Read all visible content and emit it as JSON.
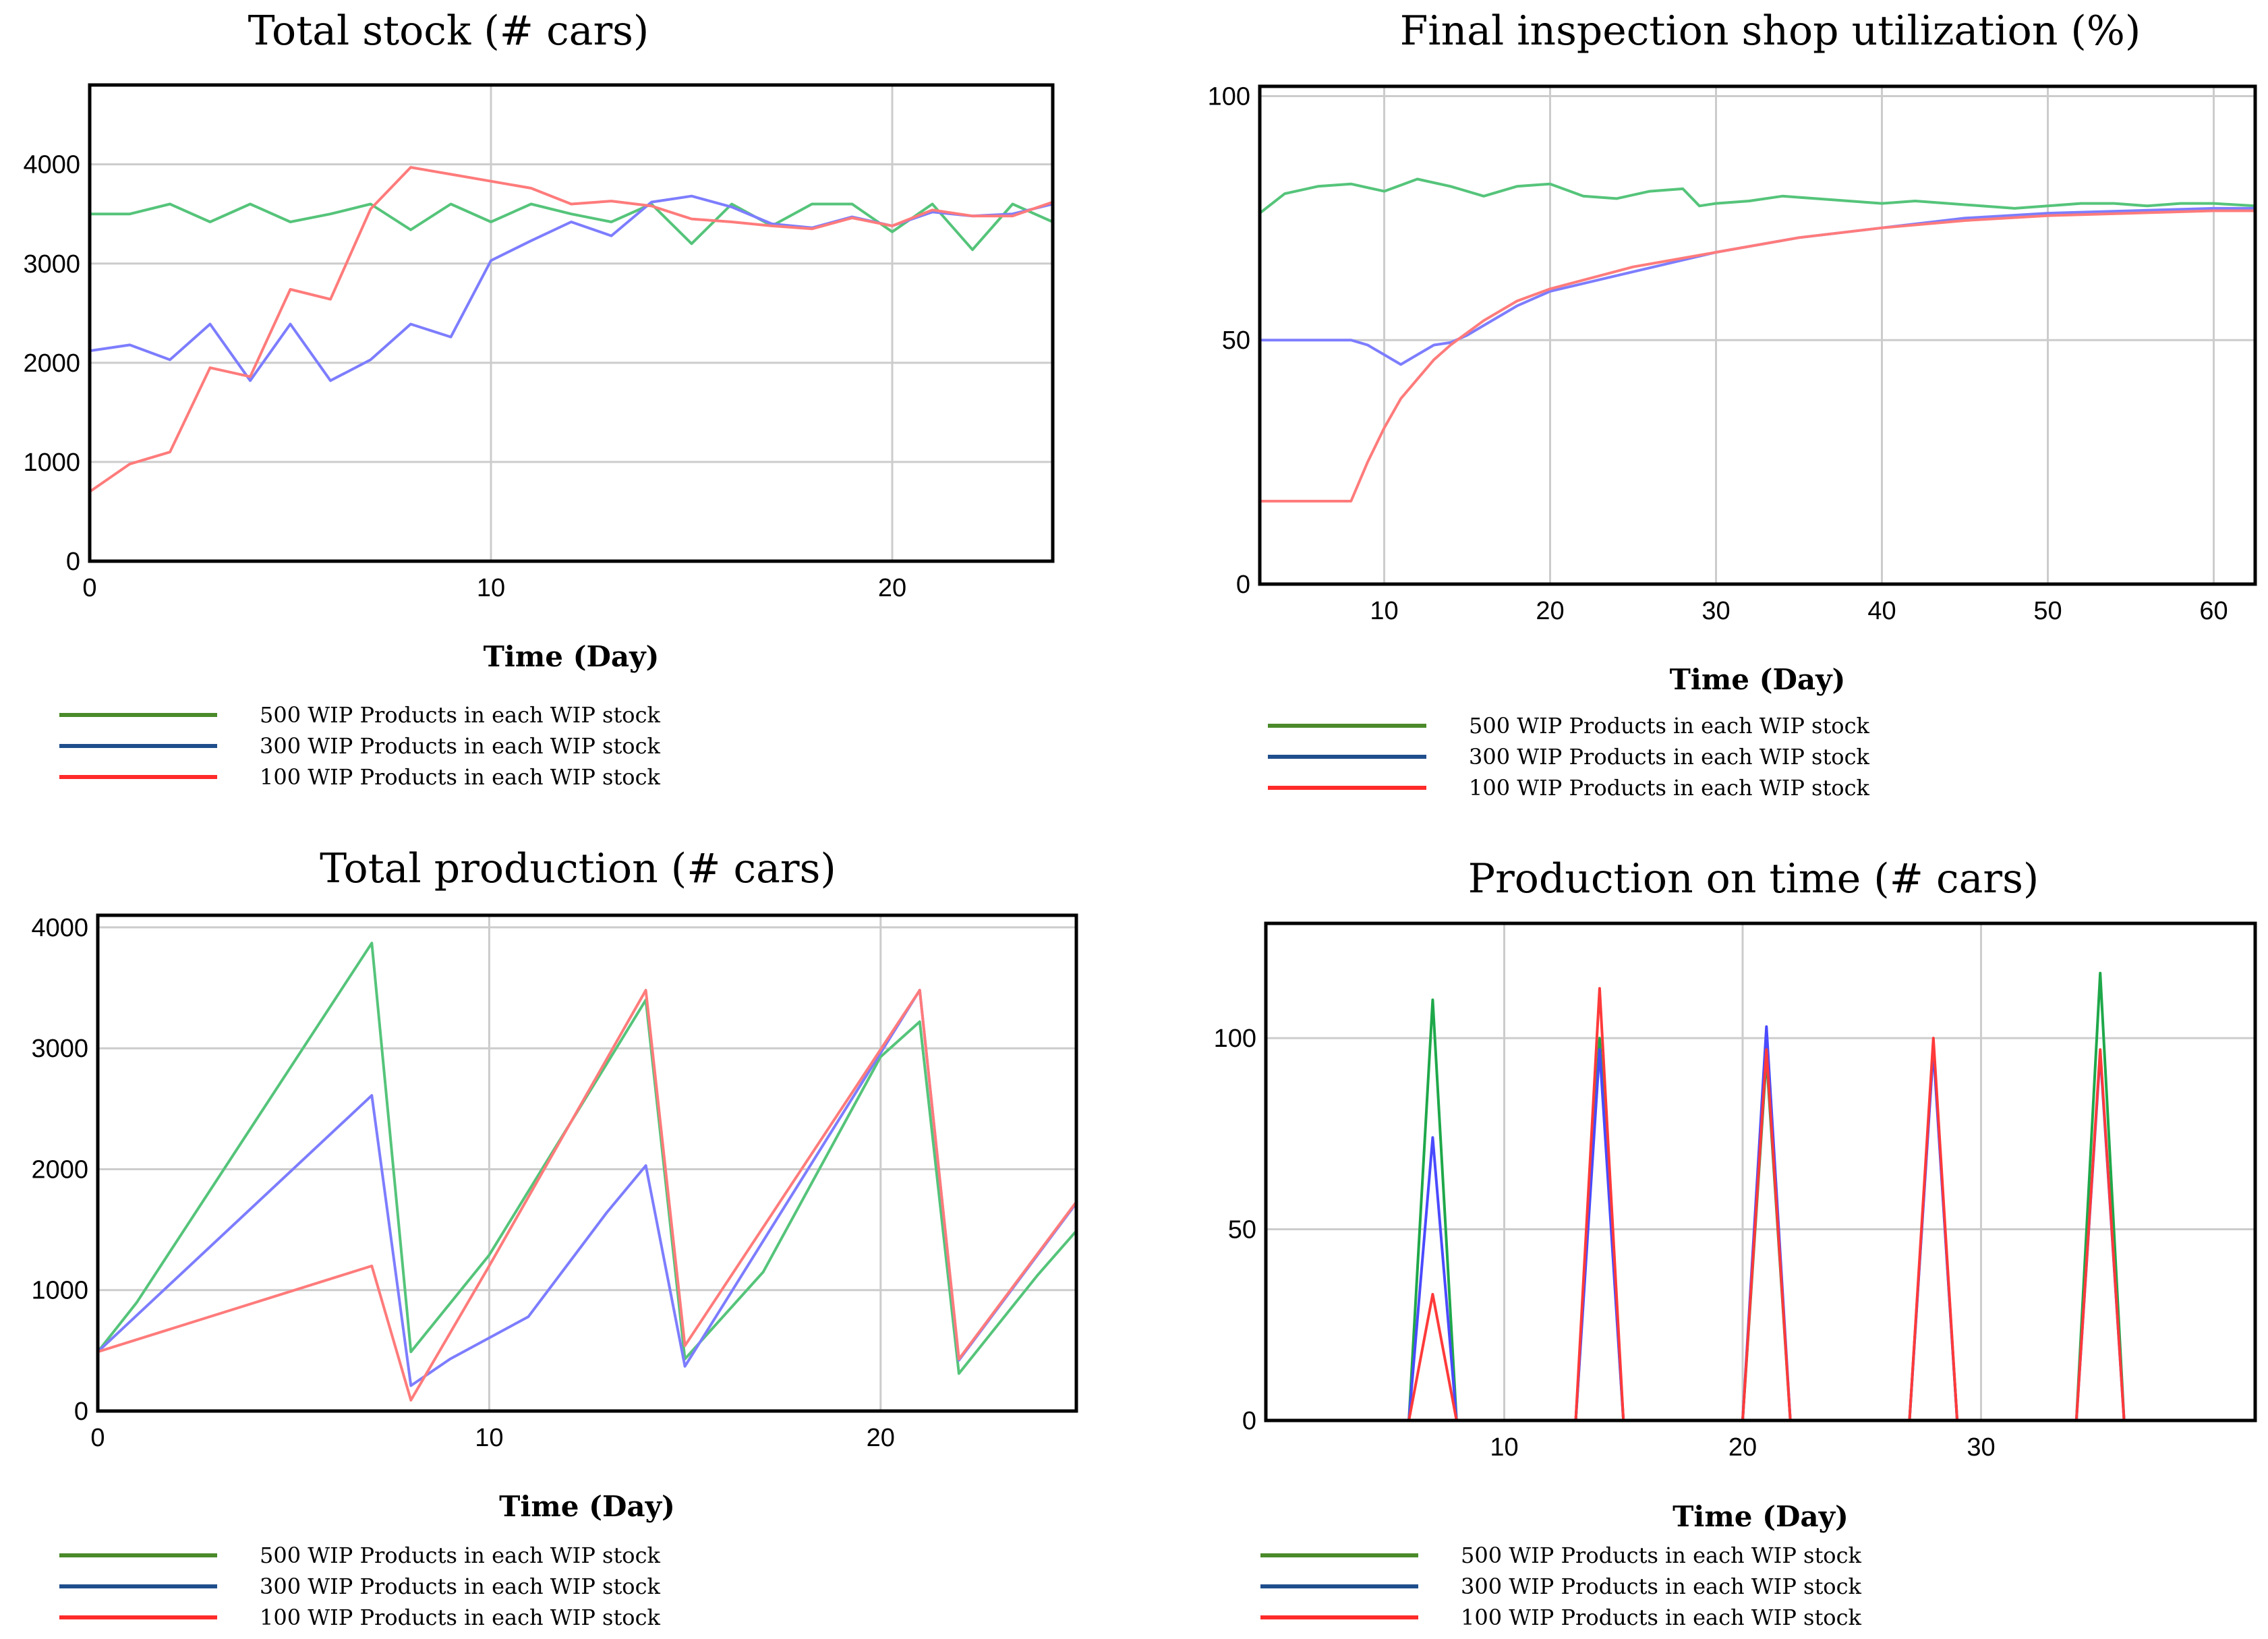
{
  "chart_data": [
    {
      "type": "line",
      "title": "Total stock (# cars)",
      "xlabel": "Time (Day)",
      "ylabel": "",
      "xlim": [
        0,
        24
      ],
      "ylim": [
        0,
        4800
      ],
      "xticks": [
        0,
        10,
        20
      ],
      "yticks": [
        0,
        1000,
        2000,
        3000,
        4000
      ],
      "grid": true,
      "legend_position": "bottom",
      "legend_colors": [
        "#4a8a2a",
        "#1f4e8c",
        "#ff2a2a"
      ],
      "series": [
        {
          "name": "500 WIP Products in each WIP stock",
          "color": "#55c47a",
          "x": [
            0,
            1,
            2,
            3,
            4,
            5,
            6,
            7,
            8,
            9,
            10,
            11,
            12,
            13,
            14,
            15,
            16,
            17,
            18,
            19,
            20,
            21,
            22,
            23,
            24
          ],
          "y": [
            3500,
            3500,
            3600,
            3420,
            3600,
            3420,
            3500,
            3600,
            3340,
            3600,
            3420,
            3600,
            3500,
            3420,
            3600,
            3200,
            3600,
            3380,
            3600,
            3600,
            3320,
            3600,
            3140,
            3600,
            3420
          ]
        },
        {
          "name": "300 WIP Products in each WIP stock",
          "color": "#7d7dff",
          "x": [
            0,
            1,
            2,
            3,
            4,
            5,
            6,
            7,
            8,
            9,
            10,
            11,
            12,
            13,
            14,
            15,
            16,
            17,
            18,
            19,
            20,
            21,
            22,
            23,
            24
          ],
          "y": [
            2120,
            2180,
            2030,
            2390,
            1820,
            2390,
            1820,
            2030,
            2390,
            2260,
            3030,
            3230,
            3420,
            3280,
            3620,
            3680,
            3570,
            3400,
            3360,
            3470,
            3380,
            3520,
            3480,
            3500,
            3600
          ]
        },
        {
          "name": "100 WIP Products in each WIP stock",
          "color": "#ff7b7b",
          "x": [
            0,
            1,
            2,
            3,
            4,
            5,
            6,
            7,
            8,
            9,
            10,
            11,
            12,
            13,
            14,
            15,
            16,
            17,
            18,
            19,
            20,
            21,
            22,
            23,
            24
          ],
          "y": [
            700,
            980,
            1100,
            1950,
            1860,
            2740,
            2640,
            3550,
            3970,
            3900,
            3830,
            3760,
            3600,
            3630,
            3580,
            3450,
            3420,
            3380,
            3350,
            3460,
            3380,
            3540,
            3480,
            3480,
            3620
          ]
        }
      ]
    },
    {
      "type": "line",
      "title": "Final inspection shop utilization (%)",
      "xlabel": "Time (Day)",
      "ylabel": "",
      "xlim": [
        2.5,
        62.5
      ],
      "ylim": [
        0,
        102
      ],
      "xticks": [
        10,
        20,
        30,
        40,
        50,
        60
      ],
      "yticks": [
        0,
        50,
        100
      ],
      "grid": true,
      "legend_position": "bottom",
      "legend_colors": [
        "#4a8a2a",
        "#1f4e8c",
        "#ff2a2a"
      ],
      "series": [
        {
          "name": "500 WIP Products in each WIP stock",
          "color": "#55c47a",
          "x": [
            2.5,
            4,
            6,
            8,
            10,
            12,
            14,
            16,
            18,
            20,
            22,
            24,
            26,
            28,
            29,
            30,
            32,
            34,
            36,
            38,
            40,
            42,
            44,
            46,
            48,
            50,
            52,
            54,
            56,
            58,
            60,
            62.5
          ],
          "y": [
            76,
            80,
            81.5,
            82,
            80.5,
            83,
            81.5,
            79.5,
            81.5,
            82,
            79.5,
            79,
            80.5,
            81,
            77.5,
            78,
            78.5,
            79.5,
            79,
            78.5,
            78,
            78.5,
            78,
            77.5,
            77,
            77.5,
            78,
            78,
            77.5,
            78,
            78,
            77.5
          ]
        },
        {
          "name": "300 WIP Products in each WIP stock",
          "color": "#7d7dff",
          "x": [
            2.5,
            4,
            6,
            8,
            9,
            10,
            11,
            12,
            13,
            14,
            15,
            16,
            18,
            20,
            25,
            30,
            35,
            40,
            45,
            50,
            55,
            60,
            62.5
          ],
          "y": [
            50,
            50,
            50,
            50,
            49,
            47,
            45,
            47,
            49,
            49.5,
            51,
            53,
            57,
            60,
            64,
            68,
            71,
            73,
            75,
            76,
            76.5,
            77,
            77
          ]
        },
        {
          "name": "100 WIP Products in each WIP stock",
          "color": "#ff7b7b",
          "x": [
            2.5,
            4,
            6,
            8,
            9,
            10,
            11,
            12,
            13,
            14,
            15,
            16,
            18,
            20,
            25,
            30,
            35,
            40,
            45,
            50,
            55,
            60,
            62.5
          ],
          "y": [
            17,
            17,
            17,
            17,
            25,
            32,
            38,
            42,
            46,
            49,
            51.5,
            54,
            58,
            60.5,
            65,
            68,
            71,
            73,
            74.5,
            75.5,
            76,
            76.5,
            76.5
          ]
        }
      ]
    },
    {
      "type": "line",
      "title": "Total production (# cars)",
      "xlabel": "Time (Day)",
      "ylabel": "",
      "xlim": [
        0,
        25
      ],
      "ylim": [
        0,
        4100
      ],
      "xticks": [
        0,
        10,
        20
      ],
      "yticks": [
        0,
        1000,
        2000,
        3000,
        4000
      ],
      "grid": true,
      "legend_position": "bottom",
      "legend_colors": [
        "#4a8a2a",
        "#1f4e8c",
        "#ff2a2a"
      ],
      "series": [
        {
          "name": "500 WIP Products in each WIP stock",
          "color": "#55c47a",
          "x": [
            0,
            1,
            7,
            8,
            10,
            13,
            14,
            15,
            17,
            20,
            21,
            22,
            24,
            25
          ],
          "y": [
            490,
            900,
            3870,
            490,
            1290,
            2870,
            3400,
            430,
            1150,
            2930,
            3220,
            310,
            1120,
            1490
          ]
        },
        {
          "name": "300 WIP Products in each WIP stock",
          "color": "#7d7dff",
          "x": [
            0,
            7,
            8,
            9,
            11,
            13,
            14,
            15,
            21,
            22,
            25
          ],
          "y": [
            490,
            2610,
            210,
            430,
            780,
            1640,
            2030,
            370,
            3480,
            420,
            1720
          ]
        },
        {
          "name": "100 WIP Products in each WIP stock",
          "color": "#ff7b7b",
          "x": [
            0,
            7,
            8,
            10,
            12,
            14,
            15,
            21,
            22,
            25
          ],
          "y": [
            490,
            1200,
            90,
            1200,
            2340,
            3480,
            540,
            3480,
            430,
            1730
          ]
        }
      ]
    },
    {
      "type": "line",
      "title": "Production on time (# cars)",
      "xlabel": "Time (Day)",
      "ylabel": "",
      "xlim": [
        0,
        41.5
      ],
      "ylim": [
        0,
        130
      ],
      "xticks": [
        10,
        20,
        30
      ],
      "yticks": [
        0,
        50,
        100
      ],
      "grid": true,
      "legend_position": "bottom",
      "legend_colors": [
        "#4a8a2a",
        "#1f4e8c",
        "#ff2a2a"
      ],
      "series": [
        {
          "name": "500 WIP Products in each WIP stock",
          "color": "#1fa84a",
          "x": [
            0,
            6,
            7,
            8,
            13,
            14,
            15,
            20,
            21,
            22,
            27,
            28,
            29,
            34,
            35,
            36,
            41.5
          ],
          "y": [
            0,
            0,
            110,
            0,
            0,
            100,
            0,
            0,
            95,
            0,
            0,
            98,
            0,
            0,
            117,
            0,
            0
          ]
        },
        {
          "name": "300 WIP Products in each WIP stock",
          "color": "#4a4aff",
          "x": [
            0,
            6,
            7,
            8,
            13,
            14,
            15,
            20,
            21,
            22,
            27,
            28,
            29,
            34,
            35,
            36,
            41.5
          ],
          "y": [
            0,
            0,
            74,
            0,
            0,
            97,
            0,
            0,
            103,
            0,
            0,
            97,
            0,
            0,
            96,
            0,
            0
          ]
        },
        {
          "name": "100 WIP Products in each WIP stock",
          "color": "#ff3a3a",
          "x": [
            0,
            6,
            7,
            8,
            13,
            14,
            15,
            20,
            21,
            22,
            27,
            28,
            29,
            34,
            35,
            36,
            41.5
          ],
          "y": [
            0,
            0,
            33,
            0,
            0,
            113,
            0,
            0,
            97,
            0,
            0,
            100,
            0,
            0,
            97,
            0,
            0
          ]
        }
      ]
    }
  ]
}
